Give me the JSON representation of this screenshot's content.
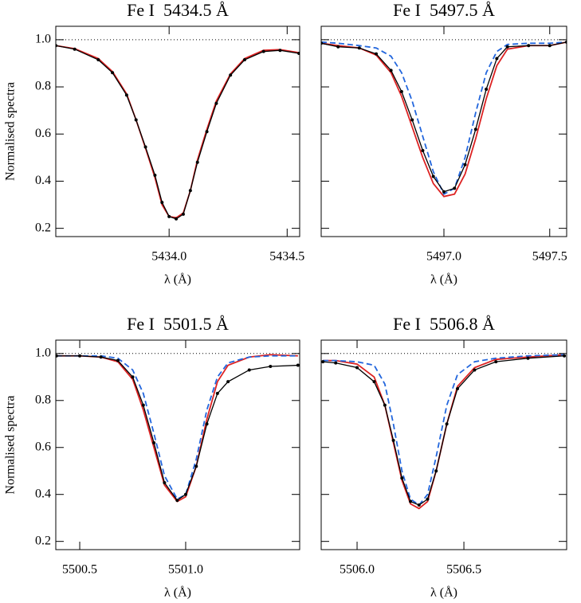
{
  "chart_data": [
    {
      "type": "line",
      "title": "Fe I  5434.5 Å",
      "xlabel": "λ (Å)",
      "ylabel": "Normalised spectra",
      "show_yticklabels": true,
      "xlim": [
        5433.52,
        5434.553
      ],
      "ylim": [
        0.165,
        1.057
      ],
      "xticks": [
        {
          "value": 5434.0,
          "label": "5434.0"
        },
        5434.5
      ],
      "yticks": [
        0.2,
        0.4,
        0.6,
        0.8,
        {
          "value": 1.0,
          "label": "1.0"
        }
      ],
      "hline": 1.0,
      "x": [
        5433.52,
        5433.6,
        5433.7,
        5433.76,
        5433.82,
        5433.86,
        5433.9,
        5433.94,
        5433.97,
        5434.0,
        5434.03,
        5434.06,
        5434.09,
        5434.12,
        5434.16,
        5434.2,
        5434.26,
        5434.32,
        5434.4,
        5434.47,
        5434.55
      ],
      "series": [
        {
          "color": "#000000",
          "style": "solid",
          "markers": true,
          "values": [
            0.975,
            0.96,
            0.915,
            0.86,
            0.765,
            0.66,
            0.545,
            0.425,
            0.31,
            0.25,
            0.24,
            0.26,
            0.36,
            0.48,
            0.61,
            0.73,
            0.85,
            0.915,
            0.95,
            0.955,
            0.942
          ]
        },
        {
          "color": "#dd2222",
          "style": "solid",
          "markers": false,
          "values": [
            0.975,
            0.962,
            0.92,
            0.865,
            0.77,
            0.66,
            0.54,
            0.415,
            0.3,
            0.25,
            0.245,
            0.265,
            0.36,
            0.49,
            0.62,
            0.74,
            0.855,
            0.92,
            0.955,
            0.958,
            0.945
          ]
        }
      ]
    },
    {
      "type": "line",
      "title": "Fe I  5497.5 Å",
      "xlabel": "λ (Å)",
      "show_yticklabels": false,
      "xlim": [
        5496.42,
        5497.58
      ],
      "ylim": [
        0.165,
        1.057
      ],
      "xticks": [
        {
          "value": 5497.0,
          "label": "5497.0"
        },
        5497.5
      ],
      "yticks": [
        0.2,
        0.4,
        0.6,
        0.8,
        {
          "value": 1.0,
          "label": "1.0"
        }
      ],
      "hline": 1.0,
      "x": [
        5496.42,
        5496.5,
        5496.6,
        5496.68,
        5496.75,
        5496.8,
        5496.85,
        5496.9,
        5496.95,
        5497.0,
        5497.05,
        5497.1,
        5497.15,
        5497.2,
        5497.25,
        5497.3,
        5497.4,
        5497.5,
        5497.58
      ],
      "series": [
        {
          "color": "#000000",
          "style": "solid",
          "markers": true,
          "values": [
            0.985,
            0.97,
            0.965,
            0.94,
            0.87,
            0.78,
            0.66,
            0.53,
            0.42,
            0.355,
            0.37,
            0.47,
            0.62,
            0.79,
            0.92,
            0.97,
            0.975,
            0.975,
            0.99
          ]
        },
        {
          "color": "#dd2222",
          "style": "solid",
          "markers": false,
          "values": [
            0.985,
            0.975,
            0.965,
            0.935,
            0.86,
            0.76,
            0.63,
            0.5,
            0.39,
            0.335,
            0.345,
            0.43,
            0.58,
            0.75,
            0.89,
            0.96,
            0.975,
            0.975,
            0.99
          ]
        },
        {
          "color": "#2266dd",
          "style": "dashed",
          "markers": false,
          "values": [
            0.99,
            0.985,
            0.975,
            0.965,
            0.93,
            0.86,
            0.74,
            0.59,
            0.44,
            0.345,
            0.37,
            0.5,
            0.69,
            0.86,
            0.95,
            0.98,
            0.985,
            0.985,
            0.99
          ]
        }
      ]
    },
    {
      "type": "line",
      "title": "Fe I  5501.5 Å",
      "xlabel": "λ (Å)",
      "ylabel": "Normalised spectra",
      "show_yticklabels": true,
      "xlim": [
        5500.387,
        5501.538
      ],
      "ylim": [
        0.165,
        1.057
      ],
      "xticks": [
        5500.5,
        {
          "value": 5501.0,
          "label": "5501.0"
        }
      ],
      "yticks": [
        0.2,
        0.4,
        0.6,
        0.8,
        {
          "value": 1.0,
          "label": "1.0"
        }
      ],
      "hline": 1.0,
      "x": [
        5500.39,
        5500.5,
        5500.6,
        5500.68,
        5500.75,
        5500.8,
        5500.85,
        5500.9,
        5500.96,
        5501.0,
        5501.05,
        5501.1,
        5501.15,
        5501.2,
        5501.3,
        5501.4,
        5501.53
      ],
      "series": [
        {
          "color": "#000000",
          "style": "solid",
          "markers": true,
          "values": [
            0.99,
            0.99,
            0.985,
            0.97,
            0.9,
            0.78,
            0.62,
            0.45,
            0.375,
            0.4,
            0.52,
            0.7,
            0.83,
            0.88,
            0.93,
            0.945,
            0.95
          ]
        },
        {
          "color": "#dd2222",
          "style": "solid",
          "markers": false,
          "values": [
            0.99,
            0.99,
            0.985,
            0.965,
            0.89,
            0.76,
            0.6,
            0.44,
            0.37,
            0.39,
            0.52,
            0.72,
            0.88,
            0.95,
            0.985,
            0.995,
            0.99
          ]
        },
        {
          "color": "#2266dd",
          "style": "dashed",
          "markers": false,
          "values": [
            0.99,
            0.99,
            0.99,
            0.98,
            0.93,
            0.83,
            0.66,
            0.48,
            0.38,
            0.4,
            0.55,
            0.76,
            0.9,
            0.96,
            0.985,
            0.99,
            0.99
          ]
        }
      ]
    },
    {
      "type": "line",
      "title": "Fe I  5506.8 Å",
      "xlabel": "λ (Å)",
      "show_yticklabels": false,
      "xlim": [
        5505.832,
        5506.981
      ],
      "ylim": [
        0.165,
        1.057
      ],
      "xticks": [
        {
          "value": 5506.0,
          "label": "5506.0"
        },
        5506.5
      ],
      "yticks": [
        0.2,
        0.4,
        0.6,
        0.8,
        {
          "value": 1.0,
          "label": "1.0"
        }
      ],
      "hline": 1.0,
      "x": [
        5505.84,
        5505.9,
        5506.0,
        5506.08,
        5506.13,
        5506.17,
        5506.21,
        5506.25,
        5506.29,
        5506.33,
        5506.37,
        5506.42,
        5506.47,
        5506.55,
        5506.65,
        5506.8,
        5506.97
      ],
      "series": [
        {
          "color": "#000000",
          "style": "solid",
          "markers": true,
          "values": [
            0.965,
            0.96,
            0.94,
            0.88,
            0.78,
            0.63,
            0.47,
            0.37,
            0.355,
            0.38,
            0.5,
            0.7,
            0.85,
            0.93,
            0.965,
            0.98,
            0.99
          ]
        },
        {
          "color": "#dd2222",
          "style": "solid",
          "markers": false,
          "values": [
            0.97,
            0.97,
            0.955,
            0.9,
            0.78,
            0.62,
            0.46,
            0.36,
            0.34,
            0.37,
            0.5,
            0.7,
            0.86,
            0.94,
            0.975,
            0.985,
            0.995
          ]
        },
        {
          "color": "#2266dd",
          "style": "dashed",
          "markers": false,
          "values": [
            0.97,
            0.97,
            0.965,
            0.95,
            0.87,
            0.7,
            0.5,
            0.38,
            0.355,
            0.4,
            0.56,
            0.78,
            0.91,
            0.965,
            0.98,
            0.99,
            0.995
          ]
        }
      ]
    }
  ]
}
